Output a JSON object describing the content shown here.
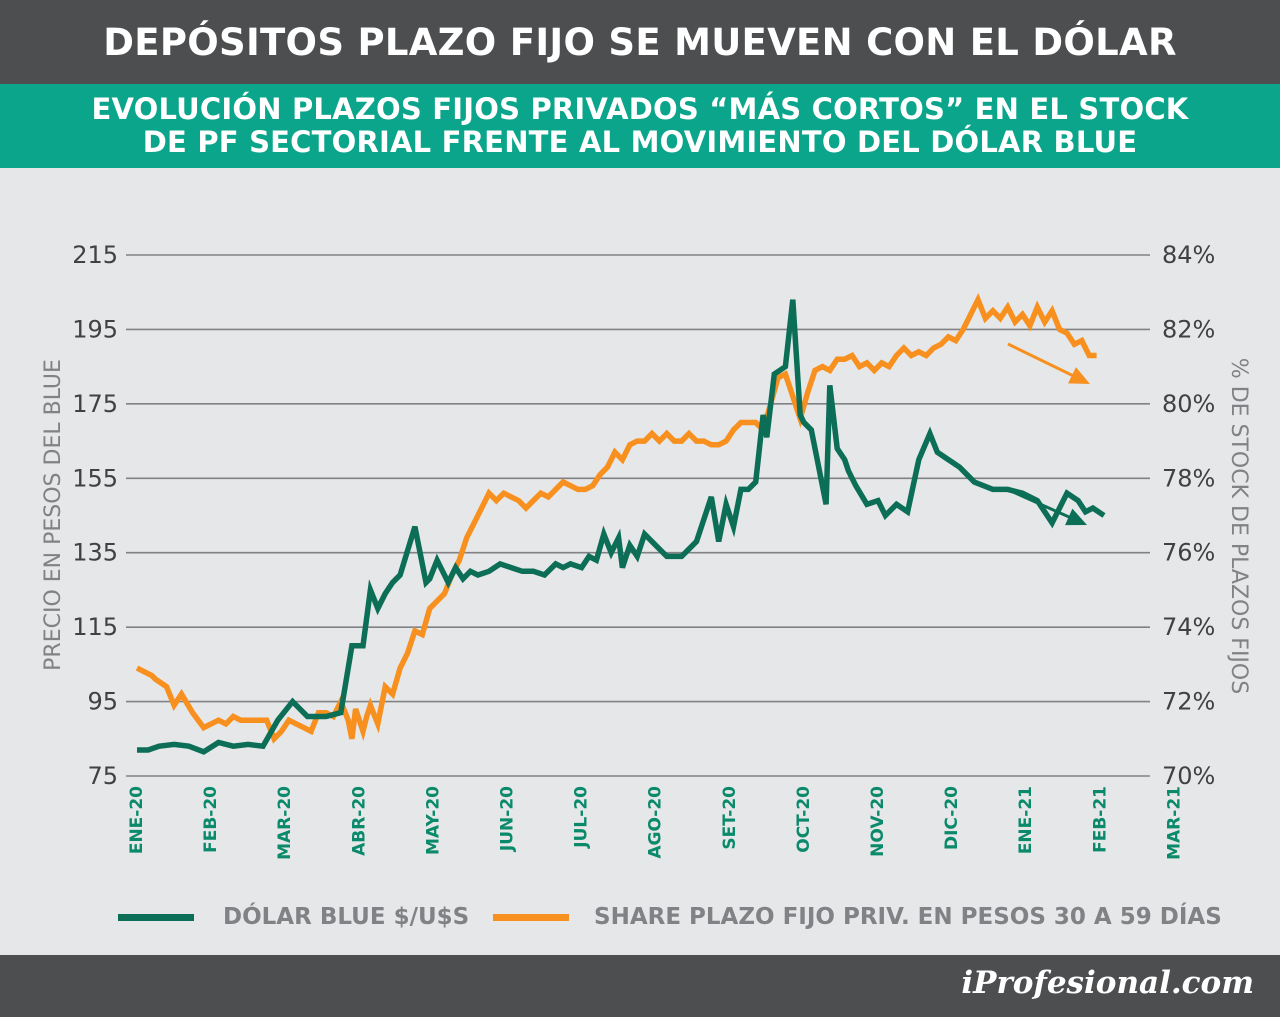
{
  "header": {
    "title": "DEPÓSITOS PLAZO FIJO SE MUEVEN CON EL DÓLAR"
  },
  "subheader": {
    "line1": "EVOLUCIÓN PLAZOS FIJOS PRIVADOS “MÁS CORTOS” EN EL STOCK",
    "line2": "DE PF SECTORIAL FRENTE AL MOVIMIENTO DEL DÓLAR BLUE"
  },
  "footer": {
    "brand": "iProfesional.com"
  },
  "colors": {
    "dolar": "#0c6e56",
    "share": "#f7901e",
    "grid": "#808285",
    "tick_x": "#0a8a6b",
    "axis_text": "#414042",
    "axis_label": "#808285"
  },
  "chart_data": {
    "type": "line",
    "title": "EVOLUCIÓN PLAZOS FIJOS PRIVADOS “MÁS CORTOS” EN EL STOCK DE PF SECTORIAL FRENTE AL MOVIMIENTO DEL DÓLAR BLUE",
    "categories": [
      "ENE-20",
      "FEB-20",
      "MAR-20",
      "ABR-20",
      "MAY-20",
      "JUN-20",
      "JUL-20",
      "AGO-20",
      "SET-20",
      "OCT-20",
      "NOV-20",
      "DIC-20",
      "ENE-21",
      "FEB-21",
      "MAR-21"
    ],
    "ylabel": "PRECIO EN PESOS DEL BLUE",
    "ylim": [
      75,
      215
    ],
    "yticks": [
      "215",
      "195",
      "175",
      "155",
      "135",
      "115",
      "95",
      "75"
    ],
    "y2label": "% DE STOCK DE PLAZOS FIJOS",
    "y2lim": [
      70,
      84
    ],
    "y2ticks": [
      "84%",
      "82%",
      "80%",
      "78%",
      "76%",
      "74%",
      "72%",
      "70%"
    ],
    "grid": true,
    "legend_position": "bottom",
    "series": [
      {
        "name": "DÓLAR BLUE $/U$S",
        "axis": "left",
        "x": [
          0,
          0.15,
          0.3,
          0.5,
          0.7,
          0.9,
          1.1,
          1.3,
          1.5,
          1.7,
          1.9,
          2.1,
          2.3,
          2.55,
          2.75,
          2.9,
          3.05,
          3.15,
          3.25,
          3.35,
          3.45,
          3.55,
          3.75,
          3.9,
          3.95,
          4.05,
          4.2,
          4.3,
          4.4,
          4.5,
          4.6,
          4.75,
          4.9,
          5.05,
          5.2,
          5.35,
          5.5,
          5.65,
          5.75,
          5.85,
          6,
          6.1,
          6.2,
          6.3,
          6.4,
          6.5,
          6.55,
          6.65,
          6.75,
          6.85,
          7,
          7.15,
          7.35,
          7.55,
          7.75,
          7.85,
          7.95,
          8.05,
          8.15,
          8.25,
          8.35,
          8.45,
          8.5,
          8.6,
          8.75,
          8.85,
          8.95,
          9,
          9.1,
          9.2,
          9.3,
          9.35,
          9.45,
          9.55,
          9.6,
          9.7,
          9.85,
          10,
          10.1,
          10.25,
          10.4,
          10.55,
          10.7,
          10.8,
          10.95,
          11.1,
          11.3,
          11.55,
          11.75,
          11.95,
          12.15,
          12.35,
          12.55,
          12.7,
          12.8,
          12.9,
          13.05
        ],
        "values": [
          82,
          82,
          83,
          83.5,
          83,
          81.5,
          84,
          83,
          83.5,
          83,
          90,
          95,
          91,
          91,
          92,
          110,
          110,
          125,
          120,
          124,
          127,
          129,
          142,
          127,
          128,
          133,
          127,
          131,
          128,
          130,
          129,
          130,
          132,
          131,
          130,
          130,
          129,
          132,
          131,
          132,
          131,
          134,
          133,
          140,
          135,
          139,
          131,
          137,
          134,
          140,
          137,
          134,
          134,
          138,
          150,
          138,
          148,
          142,
          152,
          152,
          154,
          172,
          166,
          183,
          185,
          203,
          172,
          170,
          168,
          158,
          148,
          180,
          163,
          160,
          157,
          153,
          148,
          149,
          145,
          148,
          146,
          160,
          167,
          162,
          160,
          158,
          154,
          152,
          152,
          151,
          149,
          143,
          151,
          149,
          146,
          147,
          145
        ],
        "ylim_note": "values in pesos"
      },
      {
        "name": "SHARE PLAZO FIJO PRIV. EN PESOS 30 A 59 DÍAS",
        "axis": "right",
        "x": [
          0,
          0.2,
          0.25,
          0.4,
          0.5,
          0.6,
          0.75,
          0.9,
          1,
          1.1,
          1.2,
          1.3,
          1.4,
          1.5,
          1.65,
          1.75,
          1.85,
          1.95,
          2.05,
          2.15,
          2.25,
          2.35,
          2.45,
          2.55,
          2.65,
          2.75,
          2.85,
          2.9,
          2.95,
          3.05,
          3.1,
          3.15,
          3.25,
          3.35,
          3.45,
          3.55,
          3.65,
          3.75,
          3.85,
          3.95,
          4.05,
          4.15,
          4.25,
          4.35,
          4.45,
          4.55,
          4.65,
          4.75,
          4.85,
          4.95,
          5.05,
          5.15,
          5.25,
          5.35,
          5.45,
          5.55,
          5.65,
          5.75,
          5.85,
          5.95,
          6.05,
          6.15,
          6.25,
          6.35,
          6.45,
          6.55,
          6.65,
          6.75,
          6.85,
          6.95,
          7.05,
          7.15,
          7.25,
          7.35,
          7.45,
          7.55,
          7.65,
          7.75,
          7.85,
          7.95,
          8.05,
          8.15,
          8.25,
          8.35,
          8.45,
          8.55,
          8.65,
          8.75,
          8.85,
          8.95,
          9.05,
          9.15,
          9.25,
          9.35,
          9.45,
          9.55,
          9.65,
          9.75,
          9.85,
          9.95,
          10.05,
          10.15,
          10.25,
          10.35,
          10.45,
          10.55,
          10.65,
          10.75,
          10.85,
          10.95,
          11.05,
          11.15,
          11.25,
          11.35,
          11.45,
          11.55,
          11.65,
          11.75,
          11.85,
          11.95,
          12.05,
          12.15,
          12.25,
          12.35,
          12.45,
          12.55,
          12.65,
          12.75,
          12.85,
          12.95
        ],
        "values": [
          72.9,
          72.7,
          72.6,
          72.4,
          71.9,
          72.2,
          71.7,
          71.3,
          71.4,
          71.5,
          71.4,
          71.6,
          71.5,
          71.5,
          71.5,
          71.5,
          71,
          71.2,
          71.5,
          71.4,
          71.3,
          71.2,
          71.7,
          71.7,
          71.6,
          72,
          71.5,
          71.0,
          71.8,
          71.2,
          71.6,
          71.9,
          71.4,
          72.4,
          72.2,
          72.9,
          73.3,
          73.9,
          73.8,
          74.5,
          74.7,
          74.9,
          75.4,
          75.8,
          76.4,
          76.8,
          77.2,
          77.6,
          77.4,
          77.6,
          77.5,
          77.4,
          77.2,
          77.4,
          77.6,
          77.5,
          77.7,
          77.9,
          77.8,
          77.7,
          77.7,
          77.8,
          78.1,
          78.3,
          78.7,
          78.5,
          78.9,
          79.0,
          79.0,
          79.2,
          79.0,
          79.2,
          79.0,
          79.0,
          79.2,
          79.0,
          79.0,
          78.9,
          78.9,
          79.0,
          79.3,
          79.5,
          79.5,
          79.5,
          79.3,
          80.0,
          80.7,
          80.8,
          80.2,
          79.6,
          80.3,
          80.9,
          81.0,
          80.9,
          81.2,
          81.2,
          81.3,
          81.0,
          81.1,
          80.9,
          81.1,
          81.0,
          81.3,
          81.5,
          81.3,
          81.4,
          81.3,
          81.5,
          81.6,
          81.8,
          81.7,
          82.0,
          82.4,
          82.8,
          82.3,
          82.5,
          82.3,
          82.6,
          82.2,
          82.4,
          82.1,
          82.6,
          82.2,
          82.5,
          82.0,
          81.9,
          81.6,
          81.7,
          81.3,
          81.3
        ],
        "ylim_note": "values in percent"
      }
    ],
    "annotations": [
      "orange downward arrow near DIC-20 to ENE-21",
      "green downward arrow near ENE-21 to FEB-21"
    ]
  }
}
